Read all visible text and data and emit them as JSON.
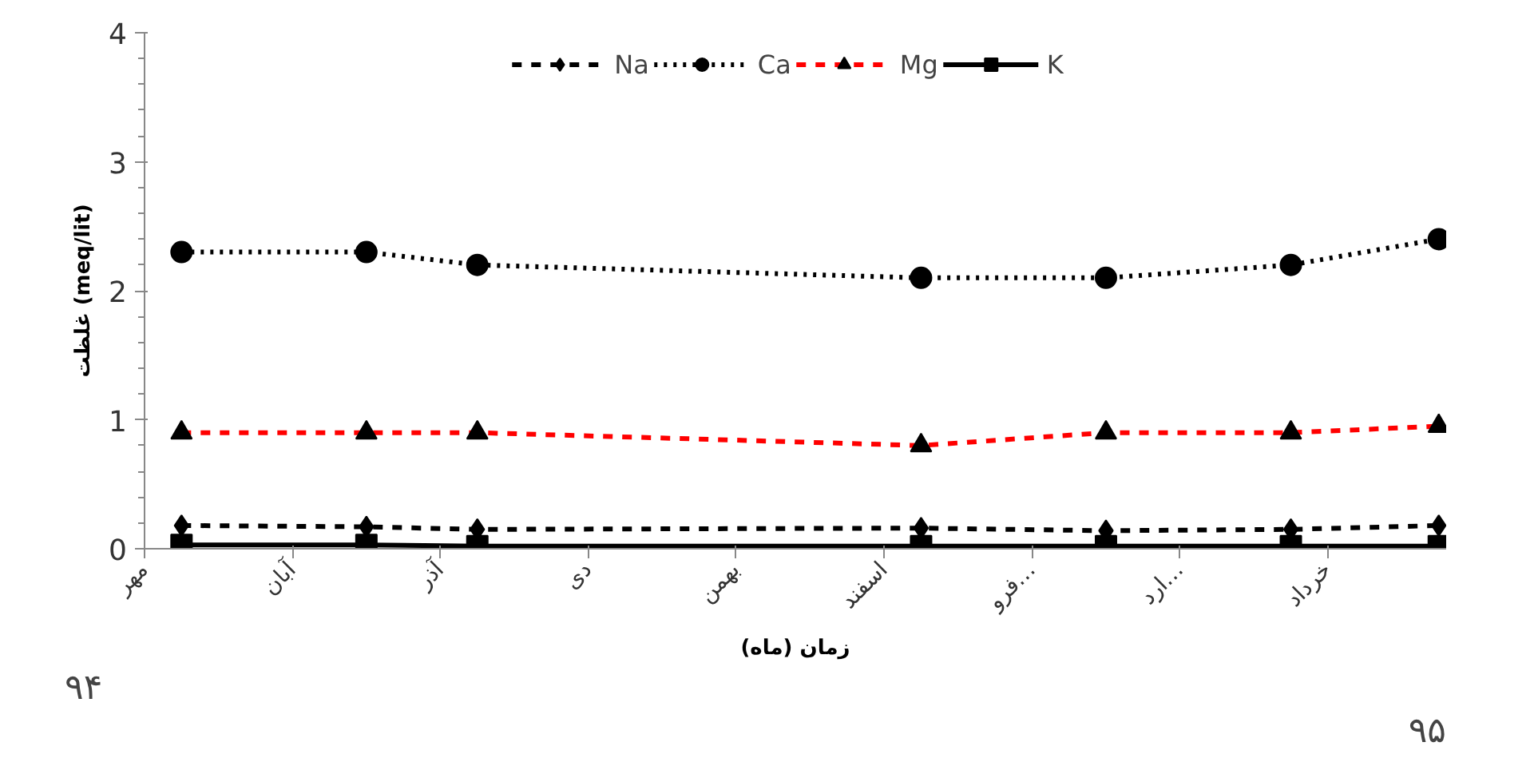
{
  "chart_data": {
    "type": "line",
    "xlabel": "زمان (ماه)",
    "ylabel": "غلظت (meq/lit)",
    "categories": [
      "مهر",
      null,
      null,
      null,
      "آبان",
      null,
      null,
      null,
      "آذر",
      null,
      null,
      null,
      "دی",
      null,
      null,
      null,
      "بهمن",
      null,
      null,
      null,
      "اسفند",
      null,
      null,
      null,
      "فرو…",
      null,
      null,
      null,
      "ارد…",
      null,
      null,
      null,
      "خرداد",
      null,
      null,
      null
    ],
    "ylim": [
      0,
      4
    ],
    "yticks": [
      0,
      1,
      2,
      3,
      4
    ],
    "grid": false,
    "legend": "top",
    "series": [
      {
        "name": "Na",
        "color": "#000000",
        "marker": "diamond",
        "line_style": "dashed",
        "values": [
          null,
          0.18,
          null,
          null,
          null,
          null,
          0.17,
          null,
          null,
          0.15,
          null,
          null,
          null,
          null,
          null,
          null,
          null,
          null,
          null,
          null,
          null,
          0.16,
          null,
          null,
          null,
          null,
          0.14,
          null,
          null,
          null,
          null,
          0.15,
          null,
          null,
          null,
          0.18
        ]
      },
      {
        "name": "Ca",
        "color": "#000000",
        "marker": "circle",
        "line_style": "dotted",
        "values": [
          null,
          2.3,
          null,
          null,
          null,
          null,
          2.3,
          null,
          null,
          2.2,
          null,
          null,
          null,
          null,
          null,
          null,
          null,
          null,
          null,
          null,
          null,
          2.1,
          null,
          null,
          null,
          null,
          2.1,
          null,
          null,
          null,
          null,
          2.2,
          null,
          null,
          null,
          2.4
        ]
      },
      {
        "name": "Mg",
        "color": "#ff0000",
        "marker": "triangle",
        "line_style": "dashed",
        "values": [
          null,
          0.9,
          null,
          null,
          null,
          null,
          0.9,
          null,
          null,
          0.9,
          null,
          null,
          null,
          null,
          null,
          null,
          null,
          null,
          null,
          null,
          null,
          0.8,
          null,
          null,
          null,
          null,
          0.9,
          null,
          null,
          null,
          null,
          0.9,
          null,
          null,
          null,
          0.95
        ]
      },
      {
        "name": "K",
        "color": "#000000",
        "marker": "square",
        "line_style": "solid",
        "values": [
          null,
          0.03,
          null,
          null,
          null,
          null,
          0.03,
          null,
          null,
          0.02,
          null,
          null,
          null,
          null,
          null,
          null,
          null,
          null,
          null,
          null,
          null,
          0.02,
          null,
          null,
          null,
          null,
          0.02,
          null,
          null,
          null,
          null,
          0.02,
          null,
          null,
          null,
          0.02
        ]
      }
    ],
    "annotations": [
      "۹۴",
      "۹۵"
    ]
  }
}
